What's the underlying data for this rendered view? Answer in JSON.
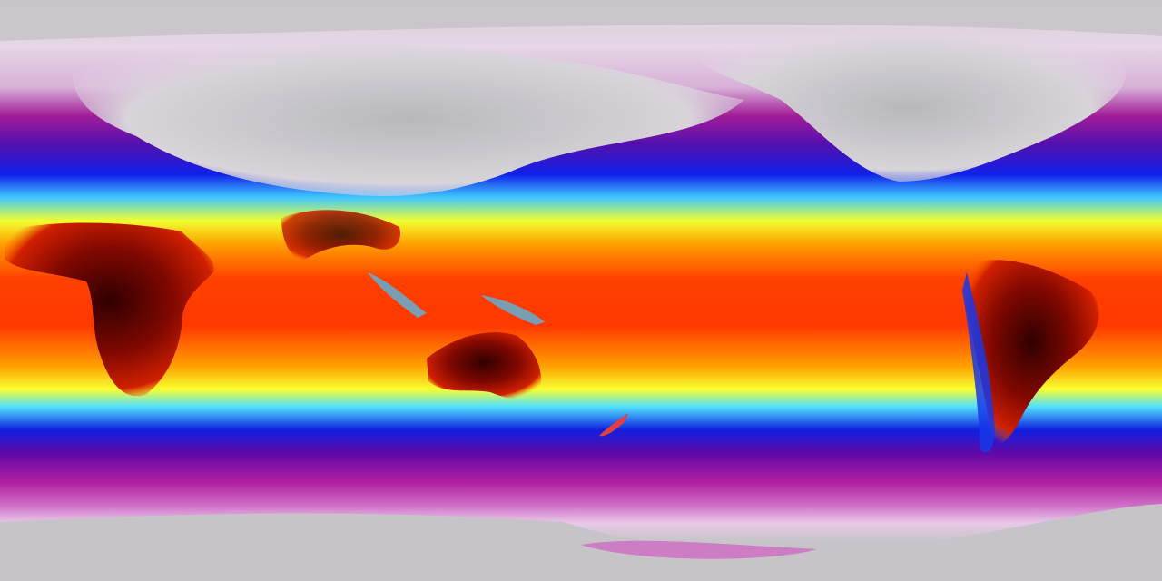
{
  "map": {
    "projection": "equirectangular",
    "colorscale": [
      "#c8c8cc",
      "#f0d8f0",
      "#b0209c",
      "#5a0aa0",
      "#0a10e0",
      "#40d0ff",
      "#ffff20",
      "#ff9000",
      "#ff2000",
      "#b01000",
      "#300000"
    ],
    "land_hot_color": "#3a0000",
    "polar_color": "#c8c6ca"
  }
}
